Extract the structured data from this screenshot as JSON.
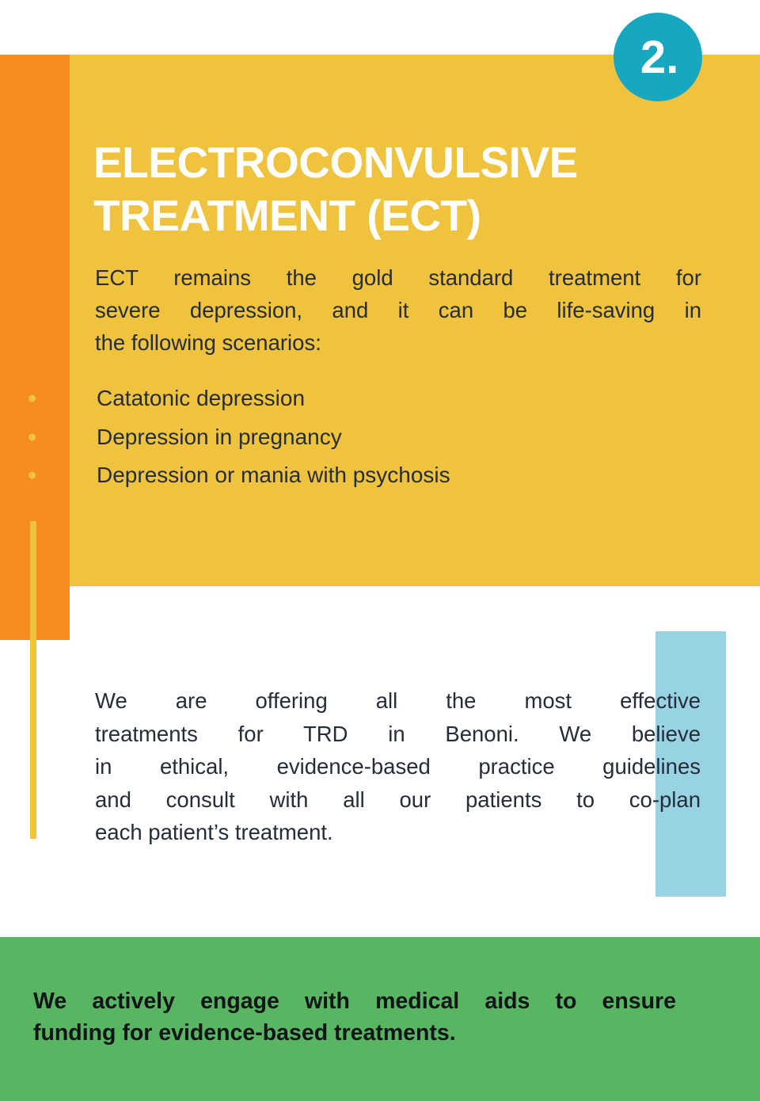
{
  "badge": {
    "number": "2."
  },
  "title": {
    "line1": "ELECTROCONVULSIVE",
    "line2": "TREATMENT (ECT)"
  },
  "intro": {
    "lines": [
      "ECT remains the gold standard treatment for",
      "severe depression, and it can be life-saving in",
      "the following scenarios:"
    ]
  },
  "bullets": {
    "items": [
      "Catatonic depression",
      "Depression in pregnancy",
      "Depression or mania with psychosis"
    ]
  },
  "body": {
    "lines": [
      "We are offering all the most effective",
      "treatments for TRD in Benoni. We believe",
      "in ethical, evidence-based practice guidelines",
      "and consult with all our patients to co-plan",
      "each patient’s treatment."
    ]
  },
  "footer": {
    "lines": [
      "We actively engage with medical aids to ensure",
      "funding for evidence-based treatments."
    ]
  },
  "colors": {
    "yellow": "#f0c33f",
    "orange": "#f68d21",
    "teal": "#18a7c0",
    "light_blue": "#98d3e4",
    "green": "#58b561",
    "dark_text": "#262c38",
    "footer_text": "#111418"
  }
}
